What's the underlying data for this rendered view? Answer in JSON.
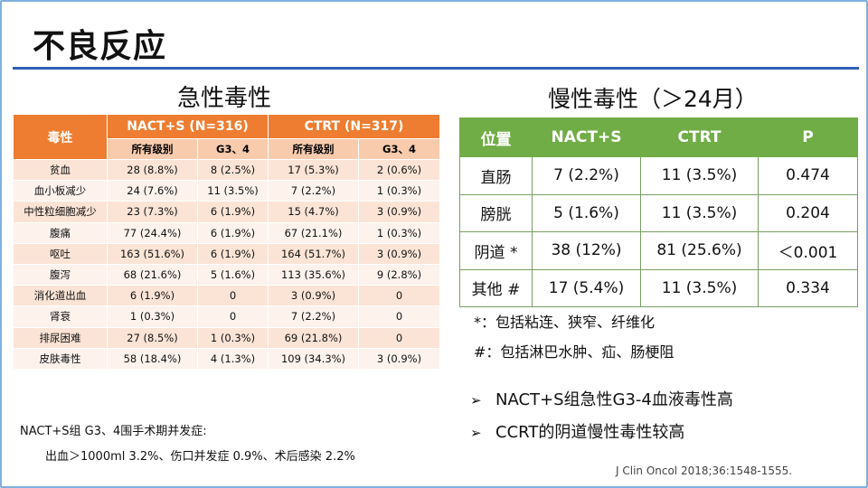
{
  "title": "不良反应",
  "acute": {
    "heading": "急性毒性",
    "header": {
      "toxicity": "毒性",
      "group1": "NACT+S (N=316)",
      "group2": "CTRT (N=317)",
      "sub": [
        "所有级别",
        "G3、4",
        "所有级别",
        "G3、4"
      ]
    },
    "rows": [
      [
        "贫血",
        "28 (8.8%)",
        "8 (2.5%)",
        "17 (5.3%)",
        "2 (0.6%)"
      ],
      [
        "血小板减少",
        "24 (7.6%)",
        "11 (3.5%)",
        "7 (2.2%)",
        "1 (0.3%)"
      ],
      [
        "中性粒细胞减少",
        "23 (7.3%)",
        "6 (1.9%)",
        "15 (4.7%)",
        "3 (0.9%)"
      ],
      [
        "腹痛",
        "77 (24.4%)",
        "6 (1.9%)",
        "67 (21.1%)",
        "1 (0.3%)"
      ],
      [
        "呕吐",
        "163 (51.6%)",
        "6 (1.9%)",
        "164 (51.7%)",
        "3 (0.9%)"
      ],
      [
        "腹泻",
        "68 (21.6%)",
        "5 (1.6%)",
        "113 (35.6%)",
        "9 (2.8%)"
      ],
      [
        "消化道出血",
        "6 (1.9%)",
        "0",
        "3 (0.9%)",
        "0"
      ],
      [
        "肾衰",
        "1 (0.3%)",
        "0",
        "7 (2.2%)",
        "0"
      ],
      [
        "排尿困难",
        "27 (8.5%)",
        "1 (0.3%)",
        "69 (21.8%)",
        "0"
      ],
      [
        "皮肤毒性",
        "58 (18.4%)",
        "4 (1.3%)",
        "109 (34.3%)",
        "3 (0.9%)"
      ]
    ]
  },
  "chronic": {
    "heading": "慢性毒性（＞24月）",
    "header": [
      "位置",
      "NACT+S",
      "CTRT",
      "P"
    ],
    "rows": [
      [
        "直肠",
        "7  (2.2%)",
        "11  (3.5%)",
        "0.474"
      ],
      [
        "膀胱",
        "5  (1.6%)",
        "11  (3.5%)",
        "0.204"
      ],
      [
        "阴道 *",
        "38  (12%)",
        "81  (25.6%)",
        "＜0.001"
      ],
      [
        "其他 #",
        "17  (5.4%)",
        "11  (3.5%)",
        "0.334"
      ]
    ]
  },
  "notes": {
    "star": "*：包括粘连、狭窄、纤维化",
    "hash": "#：包括淋巴水肿、疝、肠梗阻"
  },
  "bullets": {
    "b1": "NACT+S组急性G3-4血液毒性高",
    "b2": "CCRT的阴道慢性毒性较高"
  },
  "bottom": {
    "line1": "NACT+S组 G3、4围手术期并发症:",
    "line2": "出血＞1000ml  3.2%、伤口并发症 0.9%、术后感染 2.2%"
  },
  "citation": "J Clin Oncol 2018;36:1548-1555."
}
